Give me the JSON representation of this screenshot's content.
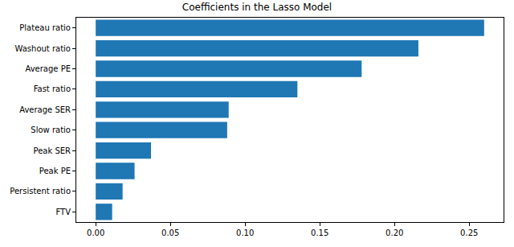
{
  "chart_data": {
    "type": "bar",
    "orientation": "horizontal",
    "title": "Coefficients in the Lasso Model",
    "categories": [
      "Plateau ratio",
      "Washout ratio",
      "Average PE",
      "Fast ratio",
      "Average SER",
      "Slow ratio",
      "Peak SER",
      "Peak PE",
      "Persistent ratio",
      "FTV"
    ],
    "values": [
      0.26,
      0.216,
      0.178,
      0.135,
      0.089,
      0.088,
      0.037,
      0.026,
      0.018,
      0.011
    ],
    "color": "#1f77b4",
    "xlim": [
      -0.013,
      0.273
    ],
    "xticks": [
      {
        "value": 0,
        "label": "0.00"
      },
      {
        "value": 0.05,
        "label": "0.05"
      },
      {
        "value": 0.1,
        "label": "0.10"
      },
      {
        "value": 0.15,
        "label": "0.15"
      },
      {
        "value": 0.2,
        "label": "0.20"
      },
      {
        "value": 0.25,
        "label": "0.25"
      }
    ],
    "grid": false
  }
}
